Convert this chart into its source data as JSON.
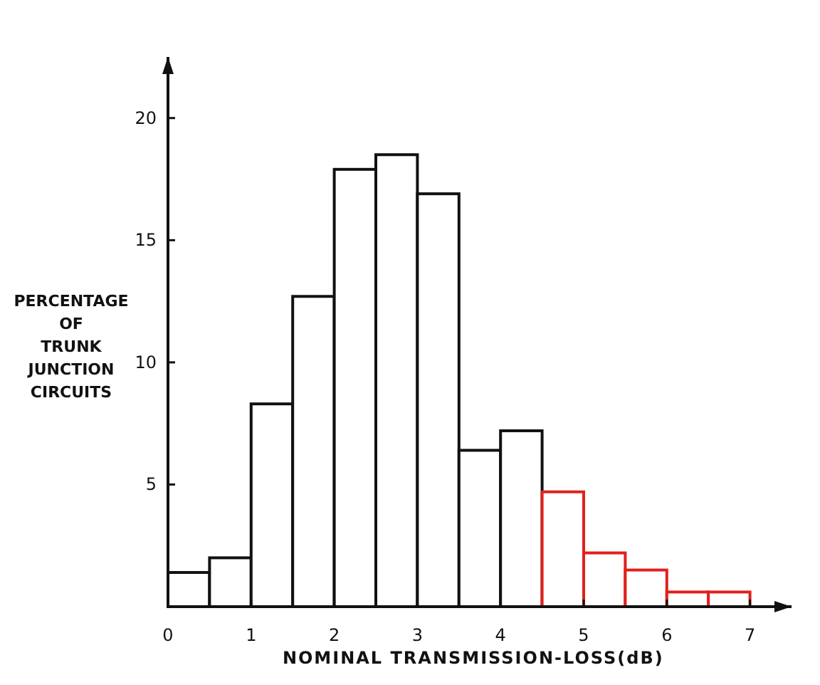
{
  "chart_data": {
    "type": "histogram",
    "xlabel": "NOMINAL TRANSMISSION-LOSS(dB)",
    "ylabel": "PERCENTAGE\nOF\nTRUNK\nJUNCTION\nCIRCUITS",
    "bins": [
      0,
      0.5,
      1,
      1.5,
      2,
      2.5,
      3,
      3.5,
      4,
      4.5,
      5,
      5.5,
      6,
      6.5,
      7
    ],
    "values": [
      1.4,
      2.0,
      8.3,
      12.7,
      17.9,
      18.5,
      16.9,
      6.4,
      7.2,
      4.7,
      2.2,
      1.5,
      0.6,
      0.6
    ],
    "colors": [
      "#111111",
      "#111111",
      "#111111",
      "#111111",
      "#111111",
      "#111111",
      "#111111",
      "#111111",
      "#111111",
      "#e0201c",
      "#e0201c",
      "#e0201c",
      "#e0201c",
      "#e0201c"
    ],
    "xlim": [
      0,
      7.5
    ],
    "ylim": [
      0,
      22.5
    ],
    "xticks": [
      0,
      1,
      2,
      3,
      4,
      5,
      6,
      7
    ],
    "yticks": [
      5,
      10,
      15,
      20
    ],
    "grid": false
  }
}
